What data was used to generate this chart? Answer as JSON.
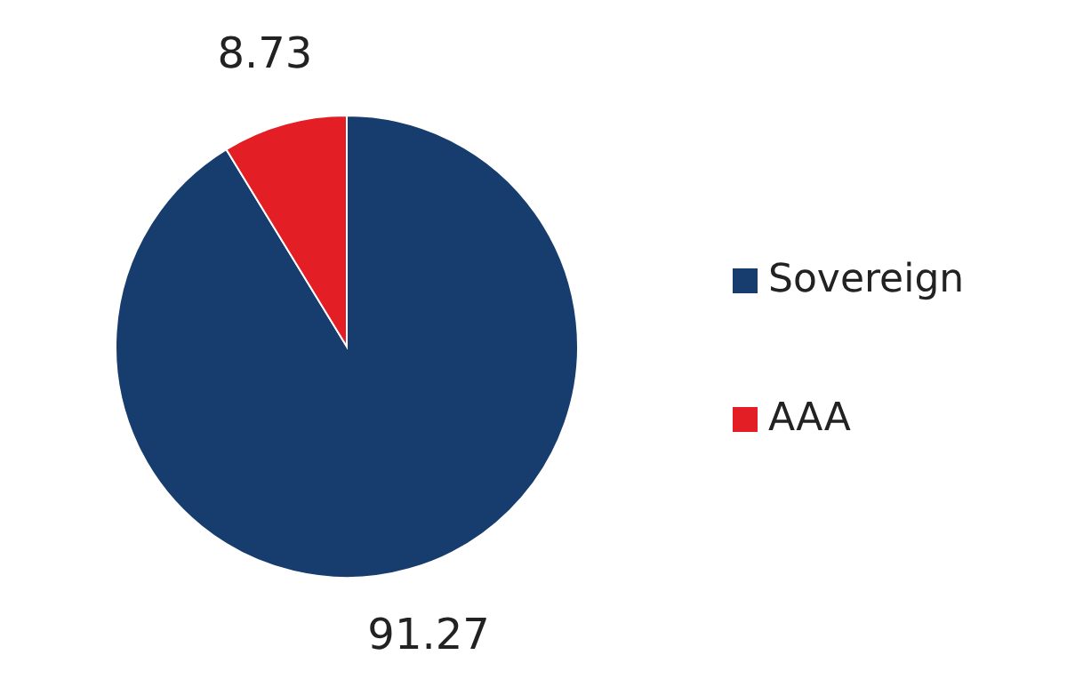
{
  "chart_data": {
    "type": "pie",
    "categories": [
      "Sovereign",
      "AAA"
    ],
    "values": [
      91.27,
      8.73
    ],
    "colors": [
      "#173c6e",
      "#e31e24"
    ],
    "data_labels": true,
    "legend": "right"
  }
}
